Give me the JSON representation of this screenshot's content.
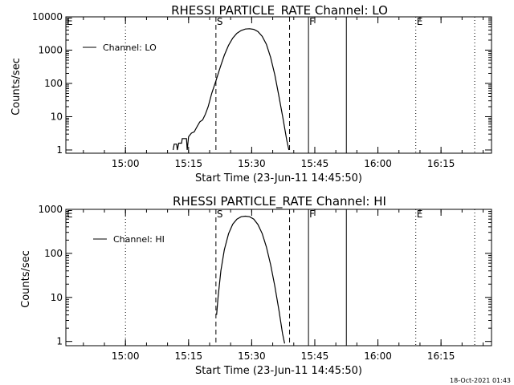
{
  "footer": {
    "timestamp": "18-Oct-2021 01:43"
  },
  "chart_data": [
    {
      "type": "line",
      "title": "RHESSI PARTICLE_RATE Channel: LO",
      "xlabel": "Start Time (23-Jun-11 14:45:50)",
      "ylabel": "Counts/sec",
      "y_scale": "log",
      "ylim": [
        0.8,
        10000
      ],
      "xlim": [
        "14:45:50",
        "16:27:00"
      ],
      "x_ticks": [
        "15:00",
        "15:15",
        "15:30",
        "15:45",
        "16:00",
        "16:15"
      ],
      "y_ticks": [
        "1",
        "10",
        "100",
        "1000",
        "10000"
      ],
      "legend": {
        "position": "top-left",
        "entries": [
          "Channel: LO"
        ]
      },
      "markers": [
        {
          "label": "E",
          "time": "14:45:50",
          "style": "dotted"
        },
        {
          "label": "",
          "time": "15:00:00",
          "style": "dotted"
        },
        {
          "label": "S",
          "time": "15:21:30",
          "style": "dashed"
        },
        {
          "label": "",
          "time": "15:39:00",
          "style": "dashed"
        },
        {
          "label": "F",
          "time": "15:43:30",
          "style": "solid"
        },
        {
          "label": "",
          "time": "15:52:30",
          "style": "solid"
        },
        {
          "label": "E",
          "time": "16:09:00",
          "style": "dotted"
        },
        {
          "label": "",
          "time": "16:23:00",
          "style": "dotted"
        }
      ],
      "series": [
        {
          "name": "Channel: LO",
          "points": [
            [
              "15:11:20",
              1
            ],
            [
              "15:11:35",
              1.5
            ],
            [
              "15:12:10",
              1.5
            ],
            [
              "15:12:20",
              1
            ],
            [
              "15:12:40",
              1.6
            ],
            [
              "15:13:20",
              1.6
            ],
            [
              "15:13:30",
              2.2
            ],
            [
              "15:14:30",
              2.2
            ],
            [
              "15:14:40",
              1
            ],
            [
              "15:15:00",
              2.5
            ],
            [
              "15:15:40",
              3.2
            ],
            [
              "15:16:20",
              3.5
            ],
            [
              "15:17:00",
              5
            ],
            [
              "15:17:40",
              7
            ],
            [
              "15:18:20",
              8
            ],
            [
              "15:19:00",
              12
            ],
            [
              "15:19:40",
              20
            ],
            [
              "15:20:30",
              50
            ],
            [
              "15:21:30",
              120
            ],
            [
              "15:22:30",
              300
            ],
            [
              "15:23:30",
              700
            ],
            [
              "15:24:30",
              1400
            ],
            [
              "15:25:30",
              2300
            ],
            [
              "15:26:30",
              3200
            ],
            [
              "15:27:30",
              3900
            ],
            [
              "15:28:30",
              4300
            ],
            [
              "15:29:30",
              4400
            ],
            [
              "15:30:30",
              4200
            ],
            [
              "15:31:30",
              3600
            ],
            [
              "15:32:30",
              2600
            ],
            [
              "15:33:30",
              1500
            ],
            [
              "15:34:30",
              600
            ],
            [
              "15:35:30",
              180
            ],
            [
              "15:36:30",
              40
            ],
            [
              "15:37:30",
              8
            ],
            [
              "15:38:20",
              2
            ],
            [
              "15:38:50",
              1
            ]
          ]
        }
      ]
    },
    {
      "type": "line",
      "title": "RHESSI PARTICLE_RATE Channel: HI",
      "xlabel": "Start Time (23-Jun-11 14:45:50)",
      "ylabel": "Counts/sec",
      "y_scale": "log",
      "ylim": [
        0.8,
        1000
      ],
      "xlim": [
        "14:45:50",
        "16:27:00"
      ],
      "x_ticks": [
        "15:00",
        "15:15",
        "15:30",
        "15:45",
        "16:00",
        "16:15"
      ],
      "y_ticks": [
        "1",
        "10",
        "100",
        "1000"
      ],
      "legend": {
        "position": "top-left",
        "entries": [
          "Channel: HI"
        ]
      },
      "markers": [
        {
          "label": "E",
          "time": "14:45:50",
          "style": "dotted"
        },
        {
          "label": "",
          "time": "15:00:00",
          "style": "dotted"
        },
        {
          "label": "S",
          "time": "15:21:30",
          "style": "dashed"
        },
        {
          "label": "",
          "time": "15:39:00",
          "style": "dashed"
        },
        {
          "label": "F",
          "time": "15:43:30",
          "style": "solid"
        },
        {
          "label": "",
          "time": "15:52:30",
          "style": "solid"
        },
        {
          "label": "E",
          "time": "16:09:00",
          "style": "dotted"
        },
        {
          "label": "",
          "time": "16:23:00",
          "style": "dotted"
        }
      ],
      "series": [
        {
          "name": "Channel: HI",
          "points": [
            [
              "15:21:40",
              4
            ],
            [
              "15:22:00",
              10
            ],
            [
              "15:22:40",
              40
            ],
            [
              "15:23:30",
              120
            ],
            [
              "15:24:30",
              280
            ],
            [
              "15:25:30",
              460
            ],
            [
              "15:26:30",
              600
            ],
            [
              "15:27:30",
              680
            ],
            [
              "15:28:30",
              700
            ],
            [
              "15:29:30",
              680
            ],
            [
              "15:30:30",
              600
            ],
            [
              "15:31:30",
              450
            ],
            [
              "15:32:30",
              280
            ],
            [
              "15:33:30",
              140
            ],
            [
              "15:34:30",
              55
            ],
            [
              "15:35:30",
              18
            ],
            [
              "15:36:30",
              5
            ],
            [
              "15:37:20",
              1.5
            ],
            [
              "15:37:50",
              0.9
            ]
          ]
        }
      ]
    }
  ]
}
